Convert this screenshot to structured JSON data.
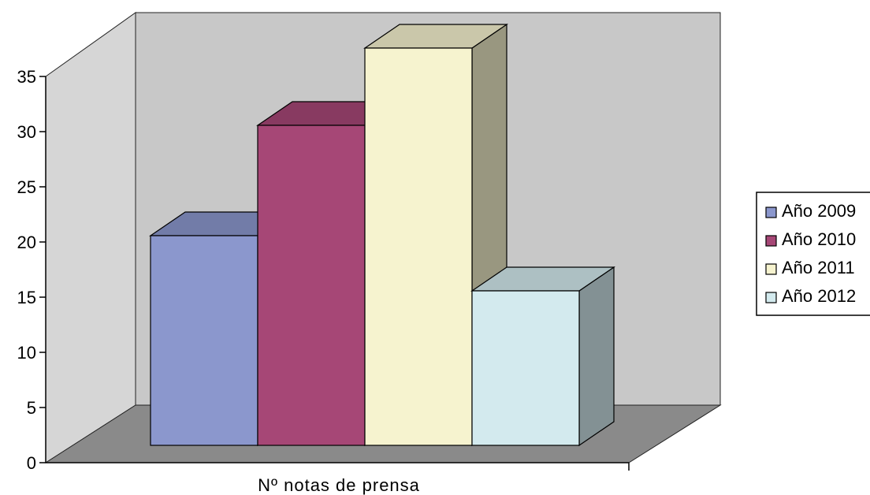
{
  "chart_data": {
    "type": "bar",
    "categories": [
      "Nº notas de prensa"
    ],
    "series": [
      {
        "name": "Año 2009",
        "values": [
          19
        ],
        "color": "#8b97cd"
      },
      {
        "name": "Año 2010",
        "values": [
          29
        ],
        "color": "#a64776"
      },
      {
        "name": "Año 2011",
        "values": [
          36
        ],
        "color": "#f6f3cf"
      },
      {
        "name": "Año 2012",
        "values": [
          14
        ],
        "color": "#d3eaee"
      }
    ],
    "xlabel": "Nº notas de prensa",
    "ylabel": "",
    "ylim": [
      0,
      35
    ],
    "yticks": [
      0,
      5,
      10,
      15,
      20,
      25,
      30,
      35
    ],
    "grid": false,
    "three_d": true,
    "legend_position": "right",
    "colors": {
      "back_wall": "#c8c8c8",
      "side_wall": "#d4d4d4",
      "floor": "#8a8a8a"
    }
  }
}
